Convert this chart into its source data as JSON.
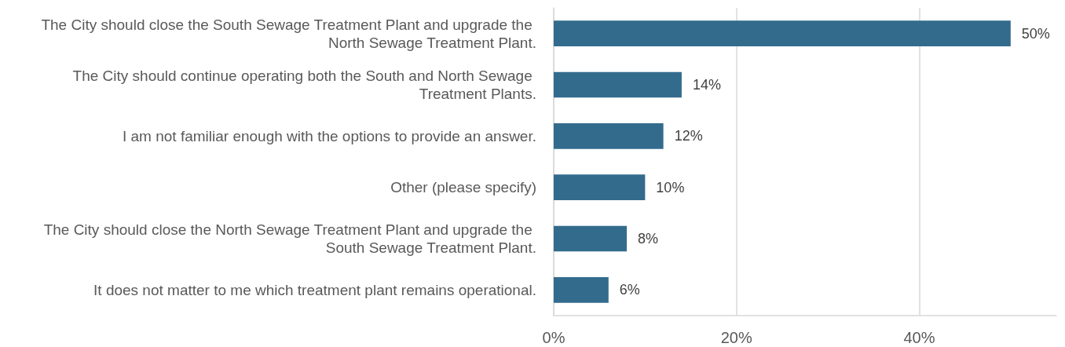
{
  "chart_data": {
    "type": "bar",
    "orientation": "horizontal",
    "categories": [
      "The City should close the South Sewage Treatment Plant and upgrade the North Sewage Treatment Plant.",
      "The City should continue operating both the South and North Sewage Treatment Plants.",
      "I am not familiar enough with the options to provide an answer.",
      "Other (please specify)",
      "The City should close the North Sewage Treatment Plant and upgrade the South Sewage Treatment Plant.",
      "It does not matter to me which treatment plant remains operational."
    ],
    "values": [
      50,
      14,
      12,
      10,
      8,
      6
    ],
    "value_labels": [
      "50%",
      "14%",
      "12%",
      "10%",
      "8%",
      "6%"
    ],
    "color": "#336b8c",
    "xticks": [
      {
        "value": 0,
        "label": "0%"
      },
      {
        "value": 20,
        "label": "20%"
      },
      {
        "value": 40,
        "label": "40%"
      }
    ],
    "xlim": [
      0,
      55
    ],
    "grid": "x"
  }
}
